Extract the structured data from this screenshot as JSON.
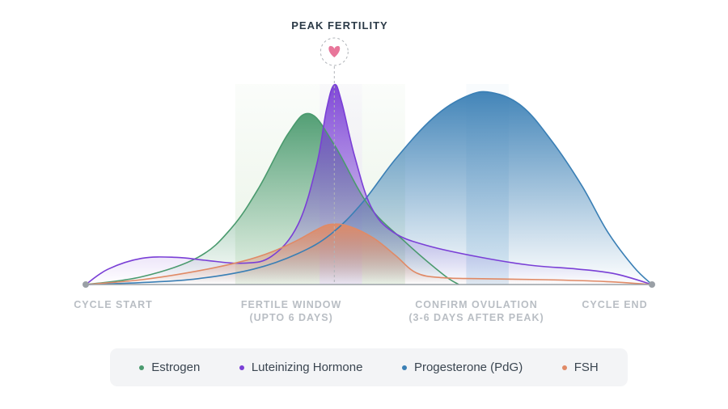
{
  "chart_data": {
    "type": "area",
    "title": "PEAK FERTILITY",
    "xlim": [
      0,
      1
    ],
    "ylim": [
      0,
      1
    ],
    "x_labels": [
      {
        "line1": "CYCLE START",
        "line2": "",
        "x": 0.0
      },
      {
        "line1": "FERTILE WINDOW",
        "line2": "(UPTO 6 DAYS)",
        "x": 0.363
      },
      {
        "line1": "CONFIRM OVULATION",
        "line2": "(3-6 DAYS AFTER PEAK)",
        "x": 0.69
      },
      {
        "line1": "CYCLE END",
        "line2": "",
        "x": 1.0
      }
    ],
    "regions": [
      {
        "name": "fertile-window",
        "x0": 0.264,
        "x1": 0.564,
        "color": "#e3f0e0"
      },
      {
        "name": "lh-peak-window",
        "x0": 0.413,
        "x1": 0.488,
        "color": "#ece3f8"
      },
      {
        "name": "confirm-ovulation",
        "x0": 0.672,
        "x1": 0.747,
        "color": "#d4e6f3"
      }
    ],
    "peak_marker": {
      "x": 0.439,
      "icon": "heart-icon"
    },
    "series": [
      {
        "name": "Estrogen",
        "color": "#4a9a6e",
        "fill": true,
        "x": [
          0,
          0.099,
          0.198,
          0.257,
          0.306,
          0.358,
          0.396,
          0.439,
          0.499,
          0.564,
          0.632,
          0.659
        ],
        "y": [
          0,
          0.04,
          0.14,
          0.29,
          0.5,
          0.78,
          0.88,
          0.72,
          0.41,
          0.22,
          0.05,
          0
        ]
      },
      {
        "name": "Luteinizing Hormone",
        "color": "#7a3fd6",
        "fill": true,
        "x": [
          0,
          0.04,
          0.099,
          0.161,
          0.211,
          0.277,
          0.328,
          0.375,
          0.408,
          0.425,
          0.439,
          0.452,
          0.475,
          0.504,
          0.543,
          0.604,
          0.698,
          0.784,
          0.867,
          0.935,
          1.0
        ],
        "y": [
          0,
          0.08,
          0.135,
          0.14,
          0.125,
          0.11,
          0.145,
          0.31,
          0.62,
          0.9,
          1.03,
          0.94,
          0.66,
          0.4,
          0.27,
          0.2,
          0.14,
          0.1,
          0.08,
          0.055,
          0
        ]
      },
      {
        "name": "Progesterone (PdG)",
        "color": "#3a7fb5",
        "fill": true,
        "x": [
          0,
          0.099,
          0.198,
          0.297,
          0.375,
          0.433,
          0.488,
          0.548,
          0.614,
          0.672,
          0.716,
          0.77,
          0.823,
          0.876,
          0.922,
          0.968,
          1.0
        ],
        "y": [
          0,
          0.01,
          0.03,
          0.08,
          0.16,
          0.26,
          0.42,
          0.65,
          0.86,
          0.97,
          0.99,
          0.92,
          0.74,
          0.51,
          0.27,
          0.09,
          0
        ]
      },
      {
        "name": "FSH",
        "color": "#e08a66",
        "fill": true,
        "x": [
          0,
          0.099,
          0.198,
          0.277,
          0.33,
          0.375,
          0.406,
          0.432,
          0.465,
          0.508,
          0.547,
          0.584,
          0.631,
          0.7,
          0.81,
          0.92,
          1.0
        ],
        "y": [
          0,
          0.025,
          0.07,
          0.12,
          0.17,
          0.23,
          0.28,
          0.31,
          0.3,
          0.24,
          0.15,
          0.06,
          0.035,
          0.03,
          0.025,
          0.015,
          0
        ]
      }
    ]
  },
  "legend": {
    "items": [
      {
        "label": "Estrogen",
        "color": "#4a9a6e"
      },
      {
        "label": "Luteinizing Hormone",
        "color": "#7a3fd6"
      },
      {
        "label": "Progesterone (PdG)",
        "color": "#3a7fb5"
      },
      {
        "label": "FSH",
        "color": "#e08a66"
      }
    ]
  }
}
